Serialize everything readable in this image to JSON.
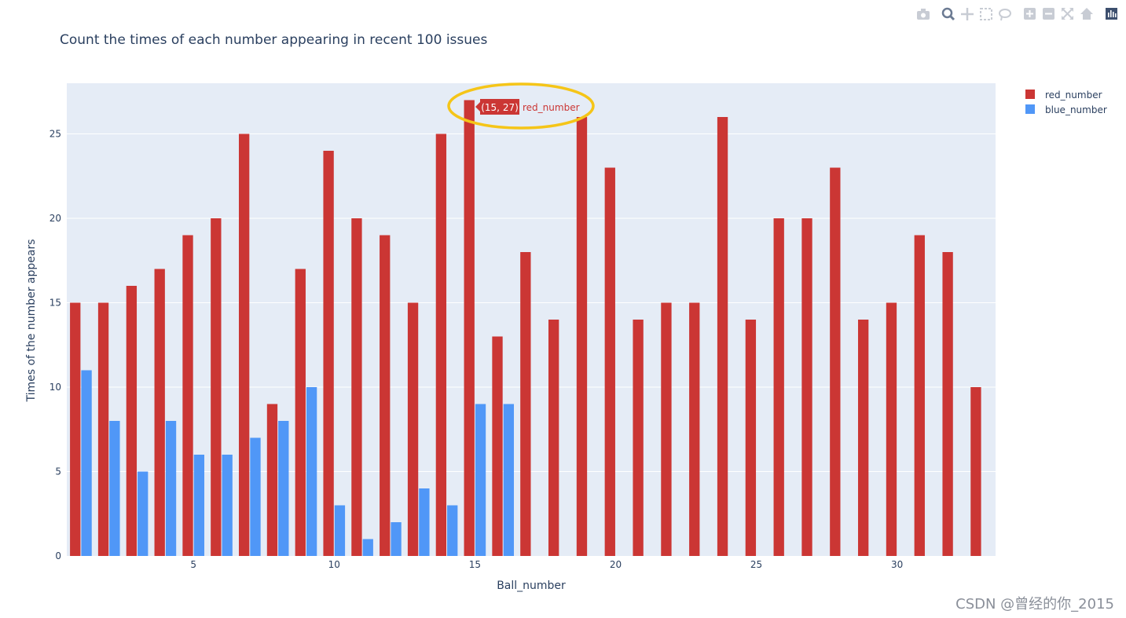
{
  "chart_data": {
    "type": "bar",
    "title": "Count the times of each number appearing in recent 100 issues",
    "xlabel": "Ball_number",
    "ylabel": "Times of the number appears",
    "xlim": [
      0.5,
      33.5
    ],
    "ylim": [
      0,
      28
    ],
    "xticks": [
      5,
      10,
      15,
      20,
      25,
      30
    ],
    "yticks": [
      0,
      5,
      10,
      15,
      20,
      25
    ],
    "grid": true,
    "legend_position": "top-right",
    "series": [
      {
        "name": "red_number",
        "color": "#cb3634",
        "x": [
          1,
          2,
          3,
          4,
          5,
          6,
          7,
          8,
          9,
          10,
          11,
          12,
          13,
          14,
          15,
          16,
          17,
          18,
          19,
          20,
          21,
          22,
          23,
          24,
          25,
          26,
          27,
          28,
          29,
          30,
          31,
          32,
          33
        ],
        "values": [
          15,
          15,
          16,
          17,
          19,
          20,
          25,
          9,
          17,
          24,
          20,
          19,
          15,
          25,
          27,
          13,
          18,
          14,
          26,
          23,
          14,
          15,
          15,
          26,
          14,
          20,
          20,
          23,
          14,
          15,
          19,
          18,
          10
        ]
      },
      {
        "name": "blue_number",
        "color": "#5097f7",
        "x": [
          1,
          2,
          3,
          4,
          5,
          6,
          7,
          8,
          9,
          10,
          11,
          12,
          13,
          14,
          15,
          16
        ],
        "values": [
          11,
          8,
          5,
          8,
          6,
          6,
          7,
          8,
          10,
          3,
          1,
          2,
          4,
          3,
          9,
          9
        ]
      }
    ],
    "hover": {
      "label": "(15, 27)",
      "series": "red_number",
      "x": 15,
      "y": 27
    }
  },
  "toolbar": {
    "icons": [
      "camera-icon",
      "zoom-icon",
      "pan-icon",
      "box-select-icon",
      "lasso-icon",
      "zoom-in-icon",
      "zoom-out-icon",
      "autoscale-icon",
      "home-icon",
      "plotly-logo-icon"
    ]
  },
  "watermark": "CSDN @曾经的你_2015"
}
